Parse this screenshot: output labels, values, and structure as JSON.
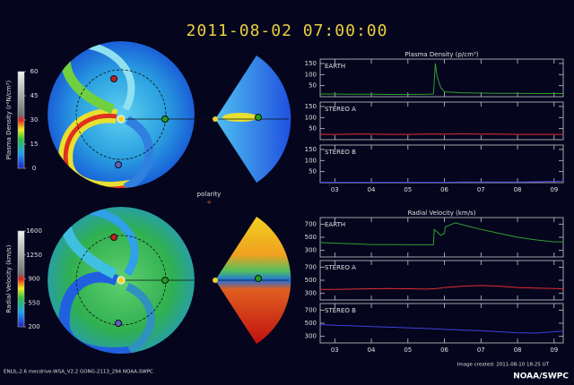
{
  "header": {
    "title": "2011-08-02  07:00:00"
  },
  "labels": {
    "polarity": "polarity"
  },
  "footer": {
    "left": "ENLIL-2.6 mecdrive-WSA_V2.2 GONG-2113_294 NOAA-SWPC",
    "right": "Image created: 2011-08-10 18:25 UT",
    "brand": "NOAA/SWPC"
  },
  "chart_data": [
    {
      "type": "line",
      "title": "Plasma Density (p/cm³)",
      "x": [
        2.6,
        3,
        3.5,
        4,
        4.5,
        5,
        5.5,
        5.7,
        5.75,
        5.8,
        5.9,
        6,
        6.5,
        7,
        7.5,
        8,
        8.5,
        9,
        9.25
      ],
      "xlim": [
        2.6,
        9.25
      ],
      "xticks": [
        {
          "value": 3,
          "label": "03"
        },
        {
          "value": 4,
          "label": "04"
        },
        {
          "value": 5,
          "label": "05"
        },
        {
          "value": 6,
          "label": "06"
        },
        {
          "value": 7,
          "label": "07"
        },
        {
          "value": 8,
          "label": "08"
        },
        {
          "value": 9,
          "label": "09"
        }
      ],
      "ylim": [
        0,
        170
      ],
      "yticks": [
        50,
        100,
        150
      ],
      "series": [
        {
          "name": "EARTH",
          "color": "#2fa02f",
          "values": [
            12,
            12,
            11,
            11,
            10,
            10,
            11,
            12,
            150,
            90,
            40,
            22,
            18,
            16,
            15,
            15,
            14,
            14,
            14
          ]
        },
        {
          "name": "STEREO A",
          "color": "#e03030",
          "values": [
            24,
            24,
            25,
            25,
            24,
            24,
            25,
            25,
            25,
            25,
            25,
            25,
            26,
            25,
            25,
            24,
            24,
            24,
            24
          ]
        },
        {
          "name": "STEREO B",
          "color": "#4040e0",
          "values": [
            2,
            2,
            2,
            2,
            2,
            2,
            2,
            2,
            2,
            2,
            2,
            2,
            3,
            3,
            3,
            3,
            4,
            6,
            7
          ]
        }
      ]
    },
    {
      "type": "line",
      "title": "Radial Velocity (km/s)",
      "x": [
        2.6,
        3,
        3.5,
        4,
        4.5,
        5,
        5.5,
        5.7,
        5.72,
        5.9,
        6.0,
        6.02,
        6.3,
        6.5,
        7,
        7.5,
        8,
        8.5,
        9,
        9.25
      ],
      "xlim": [
        2.6,
        9.25
      ],
      "xticks": [
        {
          "value": 3,
          "label": "03"
        },
        {
          "value": 4,
          "label": "04"
        },
        {
          "value": 5,
          "label": "05"
        },
        {
          "value": 6,
          "label": "06"
        },
        {
          "value": 7,
          "label": "07"
        },
        {
          "value": 8,
          "label": "08"
        },
        {
          "value": 9,
          "label": "09"
        }
      ],
      "ylim": [
        200,
        800
      ],
      "yticks": [
        300,
        500,
        700
      ],
      "series": [
        {
          "name": "EARTH",
          "color": "#2fa02f",
          "values": [
            420,
            410,
            400,
            390,
            390,
            385,
            385,
            385,
            620,
            530,
            560,
            660,
            720,
            690,
            620,
            560,
            500,
            460,
            430,
            430
          ]
        },
        {
          "name": "STEREO A",
          "color": "#e03030",
          "values": [
            360,
            360,
            365,
            370,
            375,
            370,
            365,
            370,
            370,
            380,
            390,
            390,
            400,
            410,
            420,
            410,
            390,
            380,
            375,
            370
          ]
        },
        {
          "name": "STEREO B",
          "color": "#4040e0",
          "values": [
            480,
            470,
            460,
            450,
            440,
            430,
            420,
            415,
            415,
            410,
            405,
            405,
            400,
            395,
            385,
            370,
            355,
            350,
            370,
            380
          ]
        }
      ]
    },
    {
      "type": "colorbar",
      "label": "Plasma Density (r²N/cm³)",
      "lim": [
        0,
        60
      ],
      "ticks": [
        0,
        15,
        30,
        45,
        60
      ]
    },
    {
      "type": "colorbar",
      "label": "Radial Velocity (km/s)",
      "lim": [
        200,
        1600
      ],
      "ticks": [
        200,
        550,
        900,
        1250,
        1600
      ]
    }
  ]
}
